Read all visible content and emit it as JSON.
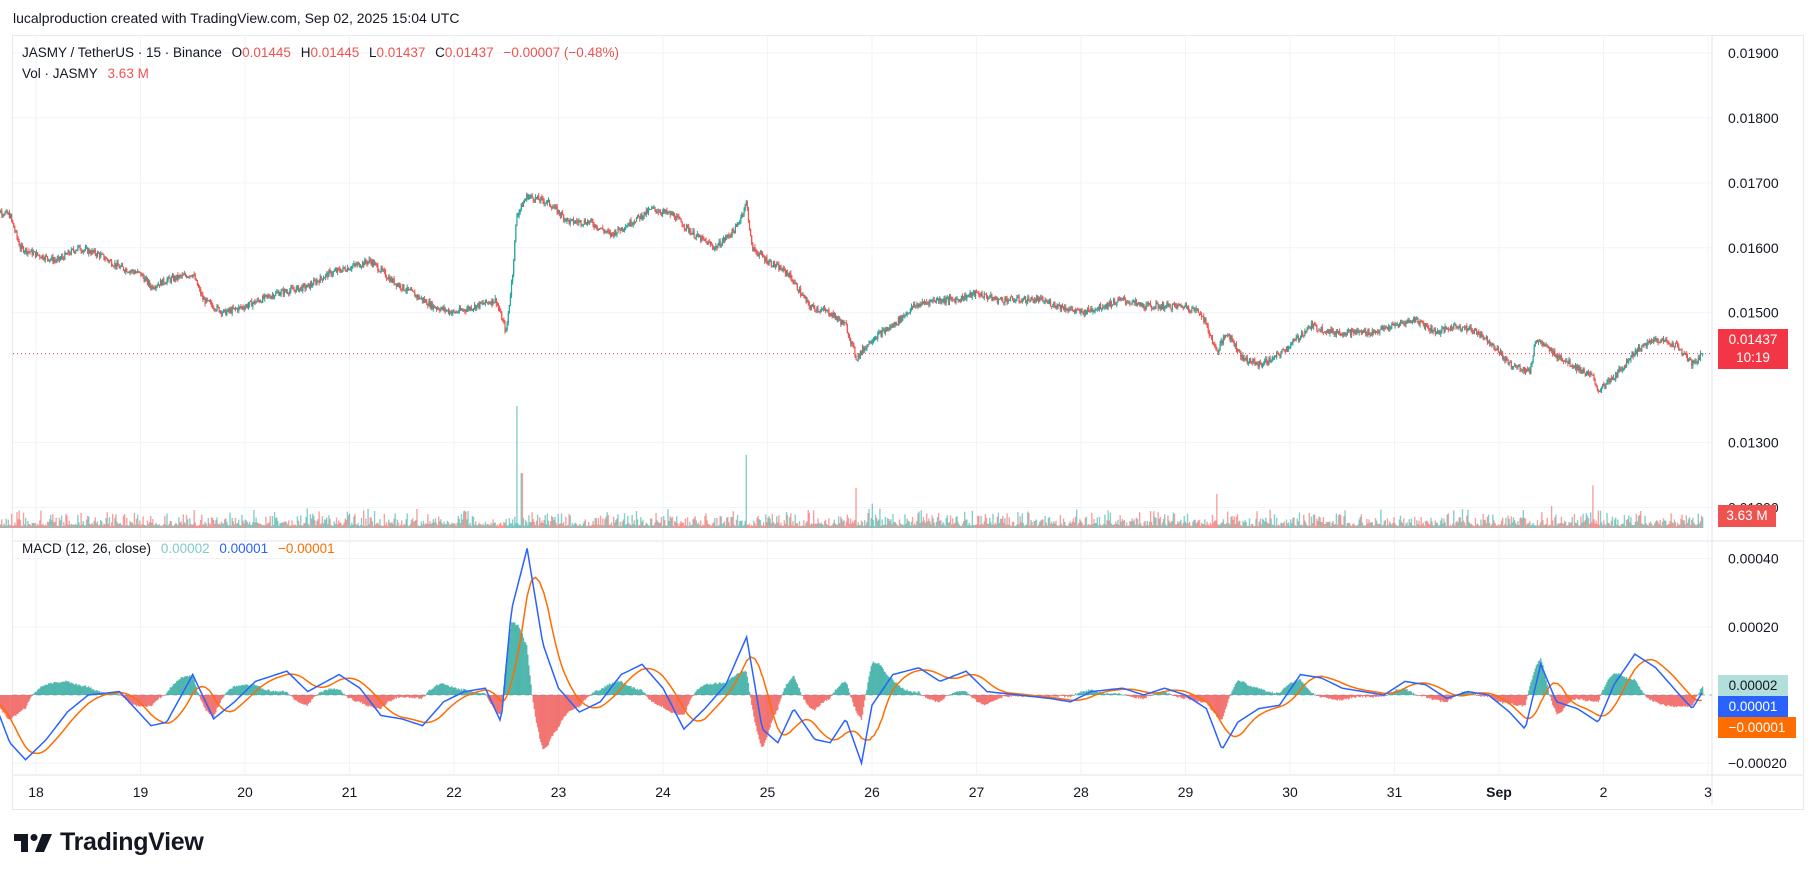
{
  "header": {
    "caption": "lucalproduction created with TradingView.com, Sep 02, 2025 15:04 UTC"
  },
  "legend": {
    "symbol": "JASMY / TetherUS · 15 · Binance",
    "open_label": "O",
    "open": "0.01445",
    "high_label": "H",
    "high": "0.01445",
    "low_label": "L",
    "low": "0.01437",
    "close_label": "C",
    "close": "0.01437",
    "change": "−0.00007 (−0.48%)",
    "volume_label": "Vol · JASMY",
    "volume": "3.63 M",
    "macd_label": "MACD (12, 26, close)",
    "macd_hist": "0.00002",
    "macd_line": "0.00001",
    "macd_signal": "−0.00001"
  },
  "badges": {
    "price": "0.01437",
    "countdown": "10:19",
    "volume": "3.63 M",
    "macd_hist": "0.00002",
    "macd_line": "0.00001",
    "macd_signal": "−0.00001"
  },
  "logo": {
    "text": "TradingView"
  },
  "colors": {
    "up": "#26a69a",
    "down": "#ef5350",
    "macd_line": "#2962ff",
    "signal_line": "#ff6d00",
    "hist_badge": "#b2dfdb",
    "grid": "#f0f3fa"
  },
  "chart_data": [
    {
      "type": "candlestick",
      "title": "JASMY / TetherUS · 15 · Binance",
      "x_tick_labels": [
        "18",
        "19",
        "20",
        "21",
        "22",
        "23",
        "24",
        "25",
        "26",
        "27",
        "28",
        "29",
        "30",
        "31",
        "Sep",
        "2",
        "3"
      ],
      "y_tick_labels": [
        "0.01900",
        "0.01800",
        "0.01700",
        "0.01600",
        "0.01500",
        "0.01300",
        "0.01200"
      ],
      "ylim": [
        0.0115,
        0.0192
      ],
      "last_price": 0.01437,
      "price_path": [
        [
          17.6,
          0.0166
        ],
        [
          17.75,
          0.0165
        ],
        [
          17.85,
          0.016
        ],
        [
          18.0,
          0.0159
        ],
        [
          18.2,
          0.0158
        ],
        [
          18.4,
          0.016
        ],
        [
          18.6,
          0.0159
        ],
        [
          18.8,
          0.0157
        ],
        [
          19.0,
          0.0156
        ],
        [
          19.1,
          0.0154
        ],
        [
          19.25,
          0.0155
        ],
        [
          19.5,
          0.0156
        ],
        [
          19.6,
          0.0152
        ],
        [
          19.8,
          0.015
        ],
        [
          20.0,
          0.0151
        ],
        [
          20.3,
          0.0153
        ],
        [
          20.6,
          0.0154
        ],
        [
          20.8,
          0.0156
        ],
        [
          21.0,
          0.0157
        ],
        [
          21.2,
          0.0158
        ],
        [
          21.4,
          0.0155
        ],
        [
          21.6,
          0.0153
        ],
        [
          21.8,
          0.0151
        ],
        [
          22.0,
          0.015
        ],
        [
          22.2,
          0.0151
        ],
        [
          22.4,
          0.0152
        ],
        [
          22.5,
          0.0147
        ],
        [
          22.56,
          0.0156
        ],
        [
          22.6,
          0.0165
        ],
        [
          22.7,
          0.0168
        ],
        [
          22.9,
          0.0167
        ],
        [
          23.1,
          0.0164
        ],
        [
          23.3,
          0.0164
        ],
        [
          23.5,
          0.0162
        ],
        [
          23.7,
          0.0164
        ],
        [
          23.9,
          0.0166
        ],
        [
          24.1,
          0.0165
        ],
        [
          24.3,
          0.0162
        ],
        [
          24.5,
          0.016
        ],
        [
          24.7,
          0.0163
        ],
        [
          24.8,
          0.0167
        ],
        [
          24.85,
          0.016
        ],
        [
          25.0,
          0.0158
        ],
        [
          25.2,
          0.0156
        ],
        [
          25.4,
          0.0151
        ],
        [
          25.6,
          0.015
        ],
        [
          25.75,
          0.0148
        ],
        [
          25.85,
          0.0143
        ],
        [
          26.0,
          0.0146
        ],
        [
          26.2,
          0.0148
        ],
        [
          26.4,
          0.0151
        ],
        [
          26.6,
          0.0152
        ],
        [
          26.8,
          0.0152
        ],
        [
          27.0,
          0.0153
        ],
        [
          27.2,
          0.0152
        ],
        [
          27.4,
          0.0152
        ],
        [
          27.6,
          0.0152
        ],
        [
          27.8,
          0.0151
        ],
        [
          28.0,
          0.015
        ],
        [
          28.2,
          0.0151
        ],
        [
          28.4,
          0.0152
        ],
        [
          28.6,
          0.0151
        ],
        [
          28.8,
          0.0151
        ],
        [
          29.0,
          0.0151
        ],
        [
          29.15,
          0.015
        ],
        [
          29.3,
          0.0144
        ],
        [
          29.4,
          0.0147
        ],
        [
          29.55,
          0.0143
        ],
        [
          29.7,
          0.0142
        ],
        [
          29.85,
          0.0143
        ],
        [
          30.0,
          0.0145
        ],
        [
          30.2,
          0.0148
        ],
        [
          30.4,
          0.0147
        ],
        [
          30.6,
          0.0147
        ],
        [
          30.8,
          0.0147
        ],
        [
          31.0,
          0.0148
        ],
        [
          31.2,
          0.0149
        ],
        [
          31.4,
          0.0147
        ],
        [
          31.6,
          0.0148
        ],
        [
          31.8,
          0.0147
        ],
        [
          31.95,
          0.0145
        ],
        [
          32.1,
          0.0142
        ],
        [
          32.3,
          0.0141
        ],
        [
          32.35,
          0.0146
        ],
        [
          32.5,
          0.0144
        ],
        [
          32.7,
          0.0142
        ],
        [
          32.9,
          0.014
        ],
        [
          32.95,
          0.0138
        ],
        [
          33.1,
          0.014
        ],
        [
          33.3,
          0.0144
        ],
        [
          33.5,
          0.0146
        ],
        [
          33.7,
          0.0145
        ],
        [
          33.85,
          0.0142
        ],
        [
          33.95,
          0.01437
        ]
      ]
    },
    {
      "type": "bar",
      "title": "Vol · JASMY",
      "last_value": "3.63 M",
      "spikes": [
        [
          22.6,
          1.0
        ],
        [
          22.65,
          0.45
        ],
        [
          24.8,
          0.6
        ],
        [
          25.85,
          0.33
        ],
        [
          26.0,
          0.2
        ],
        [
          29.3,
          0.28
        ],
        [
          32.5,
          0.18
        ],
        [
          32.9,
          0.35
        ],
        [
          21.0,
          0.12
        ],
        [
          27.4,
          0.13
        ]
      ]
    },
    {
      "type": "line",
      "title": "MACD (12, 26, close)",
      "y_tick_labels": [
        "0.00040",
        "0.00020",
        "−0.00020"
      ],
      "ylim": [
        -0.00022,
        0.00044
      ],
      "macd_points": [
        [
          17.6,
          -2e-05
        ],
        [
          17.75,
          -0.00014
        ],
        [
          17.9,
          -0.00019
        ],
        [
          18.1,
          -0.00013
        ],
        [
          18.3,
          -5e-05
        ],
        [
          18.5,
          0.0
        ],
        [
          18.8,
          1e-05
        ],
        [
          19.1,
          -9e-05
        ],
        [
          19.25,
          -8e-05
        ],
        [
          19.5,
          6e-05
        ],
        [
          19.7,
          -7e-05
        ],
        [
          19.9,
          -2e-05
        ],
        [
          20.1,
          4e-05
        ],
        [
          20.4,
          7e-05
        ],
        [
          20.6,
          1e-05
        ],
        [
          20.9,
          6e-05
        ],
        [
          21.1,
          2e-05
        ],
        [
          21.3,
          -6e-05
        ],
        [
          21.5,
          -7e-05
        ],
        [
          21.7,
          -9e-05
        ],
        [
          21.9,
          -2e-05
        ],
        [
          22.1,
          1e-05
        ],
        [
          22.3,
          2e-05
        ],
        [
          22.45,
          -8e-05
        ],
        [
          22.55,
          0.00025
        ],
        [
          22.7,
          0.00043
        ],
        [
          22.85,
          0.00015
        ],
        [
          23.0,
          2e-05
        ],
        [
          23.2,
          -5e-05
        ],
        [
          23.4,
          -2e-05
        ],
        [
          23.6,
          6e-05
        ],
        [
          23.8,
          9e-05
        ],
        [
          24.0,
          2e-05
        ],
        [
          24.2,
          -0.0001
        ],
        [
          24.4,
          -4e-05
        ],
        [
          24.6,
          3e-05
        ],
        [
          24.8,
          0.00017
        ],
        [
          24.95,
          -0.0001
        ],
        [
          25.1,
          -0.00014
        ],
        [
          25.25,
          -4e-05
        ],
        [
          25.45,
          -0.00013
        ],
        [
          25.6,
          -0.00014
        ],
        [
          25.75,
          -7e-05
        ],
        [
          25.9,
          -0.0002
        ],
        [
          26.0,
          -3e-05
        ],
        [
          26.2,
          6e-05
        ],
        [
          26.45,
          8e-05
        ],
        [
          26.65,
          4e-05
        ],
        [
          26.9,
          7e-05
        ],
        [
          27.1,
          1e-05
        ],
        [
          27.4,
          0.0
        ],
        [
          27.7,
          -1e-05
        ],
        [
          27.9,
          -2e-05
        ],
        [
          28.1,
          1e-05
        ],
        [
          28.4,
          2e-05
        ],
        [
          28.6,
          0.0
        ],
        [
          28.8,
          2e-05
        ],
        [
          29.0,
          0.0
        ],
        [
          29.2,
          -4e-05
        ],
        [
          29.35,
          -0.00016
        ],
        [
          29.5,
          -8e-05
        ],
        [
          29.7,
          -4e-05
        ],
        [
          29.9,
          -3e-05
        ],
        [
          30.1,
          6e-05
        ],
        [
          30.3,
          5e-05
        ],
        [
          30.5,
          2e-05
        ],
        [
          30.7,
          1e-05
        ],
        [
          30.9,
          0.0
        ],
        [
          31.1,
          4e-05
        ],
        [
          31.3,
          3e-05
        ],
        [
          31.5,
          -1e-05
        ],
        [
          31.7,
          1e-05
        ],
        [
          31.9,
          0.0
        ],
        [
          32.1,
          -5e-05
        ],
        [
          32.25,
          -0.0001
        ],
        [
          32.4,
          9e-05
        ],
        [
          32.55,
          -2e-05
        ],
        [
          32.75,
          -4e-05
        ],
        [
          32.95,
          -8e-05
        ],
        [
          33.1,
          3e-05
        ],
        [
          33.3,
          0.00012
        ],
        [
          33.5,
          8e-05
        ],
        [
          33.7,
          1e-05
        ],
        [
          33.85,
          -4e-05
        ],
        [
          33.95,
          1e-05
        ]
      ],
      "signal_lag_days": 0.12
    }
  ]
}
